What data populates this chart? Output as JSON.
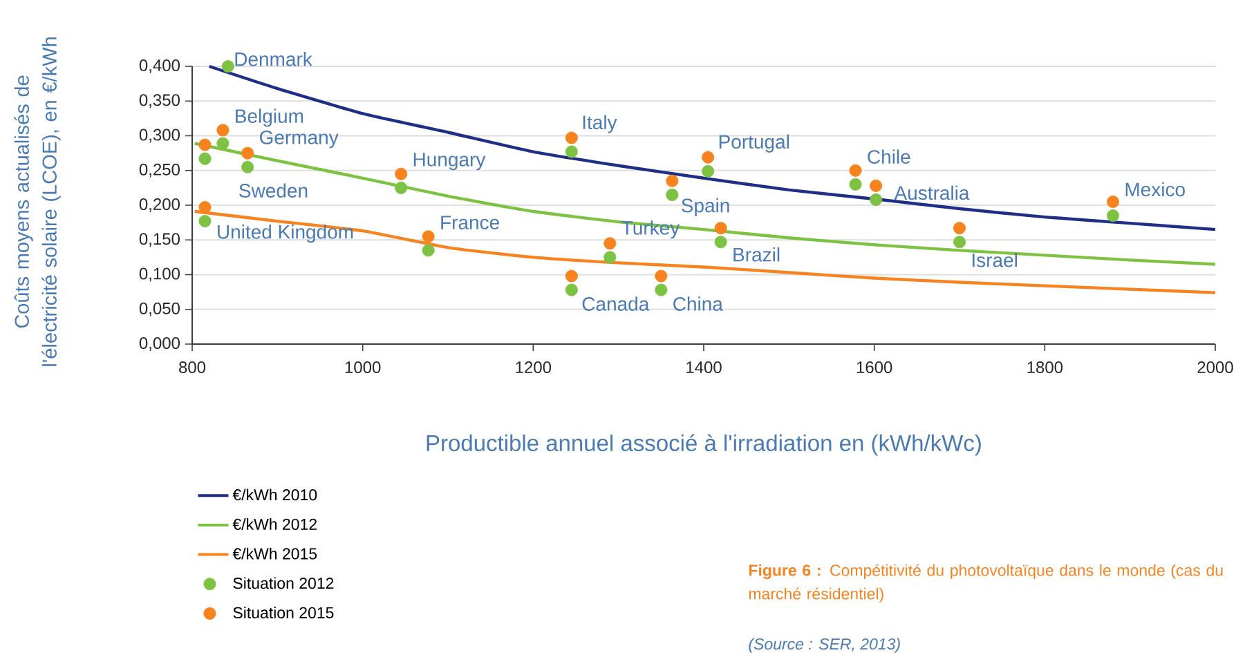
{
  "chart_data": {
    "type": "line",
    "title": "**Figure 6 :** Compétitivité du photovoltaïque dans le monde (cas du marché résidentiel)",
    "xlabel": "Productible annuel associé à l'irradiation en (kWh/kWc)",
    "ylabel": "Coûts moyens actualisés de l'électricité solaire (LCOE), en €/kWh",
    "xlim": [
      800,
      2000
    ],
    "xticks": [
      800,
      1000,
      1200,
      1400,
      1600,
      1800,
      2000
    ],
    "ylim": [
      0,
      0.4
    ],
    "yticks": [
      {
        "value": 0,
        "label": "0,000"
      },
      {
        "value": 0.05,
        "label": "0,050"
      },
      {
        "value": 0.1,
        "label": "0,100"
      },
      {
        "value": 0.15,
        "label": "0,150"
      },
      {
        "value": 0.2,
        "label": "0,200"
      },
      {
        "value": 0.25,
        "label": "0,250"
      },
      {
        "value": 0.3,
        "label": "0,300"
      },
      {
        "value": 0.35,
        "label": "0,350"
      },
      {
        "value": 0.4,
        "label": "0,400"
      }
    ],
    "grid": "y",
    "legend": "bottom left",
    "series": [
      {
        "name": "€/kWh 2010",
        "color": "#1f2e86",
        "x": [
          820,
          900,
          1000,
          1100,
          1200,
          1300,
          1400,
          1500,
          1600,
          1700,
          1800,
          1900,
          2000
        ],
        "values": [
          0.4,
          0.368,
          0.332,
          0.305,
          0.277,
          0.257,
          0.239,
          0.222,
          0.209,
          0.195,
          0.183,
          0.174,
          0.165
        ]
      },
      {
        "name": "€/kWh 2012",
        "color": "#7dc242",
        "x": [
          803,
          900,
          1000,
          1100,
          1200,
          1300,
          1400,
          1500,
          1600,
          1700,
          1800,
          1900,
          2000
        ],
        "values": [
          0.289,
          0.264,
          0.239,
          0.213,
          0.191,
          0.176,
          0.165,
          0.153,
          0.143,
          0.135,
          0.128,
          0.121,
          0.115
        ]
      },
      {
        "name": "€/kWh 2015",
        "color": "#f7831f",
        "x": [
          803,
          900,
          1000,
          1100,
          1200,
          1300,
          1400,
          1500,
          1600,
          1700,
          1800,
          1900,
          2000
        ],
        "values": [
          0.191,
          0.177,
          0.163,
          0.139,
          0.125,
          0.117,
          0.111,
          0.103,
          0.095,
          0.089,
          0.084,
          0.079,
          0.074
        ]
      },
      {
        "name": "Situation 2012",
        "type": "scatter",
        "marker": "circle",
        "color": "#7dc242",
        "x": [
          842,
          836,
          865,
          815,
          815,
          1045,
          1077,
          1245,
          1245,
          1290,
          1350,
          1363,
          1405,
          1420,
          1578,
          1602,
          1700,
          1880
        ],
        "values": [
          0.4,
          0.289,
          0.255,
          0.267,
          0.177,
          0.225,
          0.135,
          0.277,
          0.078,
          0.125,
          0.078,
          0.215,
          0.249,
          0.147,
          0.23,
          0.208,
          0.147,
          0.185
        ]
      },
      {
        "name": "Situation 2015",
        "type": "scatter",
        "marker": "circle",
        "color": "#f7831f",
        "x": [
          836,
          865,
          815,
          815,
          1045,
          1077,
          1245,
          1245,
          1290,
          1350,
          1363,
          1405,
          1420,
          1578,
          1602,
          1700,
          1880
        ],
        "values": [
          0.308,
          0.275,
          0.287,
          0.197,
          0.245,
          0.155,
          0.297,
          0.098,
          0.145,
          0.098,
          0.235,
          0.269,
          0.167,
          0.25,
          0.228,
          0.167,
          0.205
        ]
      }
    ],
    "annotations": [
      {
        "text": "Denmark",
        "x": 842,
        "y": 0.4
      },
      {
        "text": "Belgium",
        "x": 836,
        "y": 0.308
      },
      {
        "text": "Germany",
        "x": 865,
        "y": 0.275
      },
      {
        "text": "Sweden",
        "x": 815,
        "y": 0.267
      },
      {
        "text": "United Kingdom",
        "x": 815,
        "y": 0.177
      },
      {
        "text": "Hungary",
        "x": 1045,
        "y": 0.245
      },
      {
        "text": "France",
        "x": 1077,
        "y": 0.155
      },
      {
        "text": "Italy",
        "x": 1245,
        "y": 0.297
      },
      {
        "text": "Canada",
        "x": 1245,
        "y": 0.078
      },
      {
        "text": "Turkey",
        "x": 1290,
        "y": 0.145
      },
      {
        "text": "China",
        "x": 1350,
        "y": 0.078
      },
      {
        "text": "Spain",
        "x": 1363,
        "y": 0.215
      },
      {
        "text": "Portugal",
        "x": 1405,
        "y": 0.269
      },
      {
        "text": "Brazil",
        "x": 1420,
        "y": 0.147
      },
      {
        "text": "Chile",
        "x": 1578,
        "y": 0.25
      },
      {
        "text": "Australia",
        "x": 1602,
        "y": 0.208
      },
      {
        "text": "Israel",
        "x": 1700,
        "y": 0.147
      },
      {
        "text": "Mexico",
        "x": 1880,
        "y": 0.205
      },
      "(Source : SER, 2013)"
    ]
  }
}
